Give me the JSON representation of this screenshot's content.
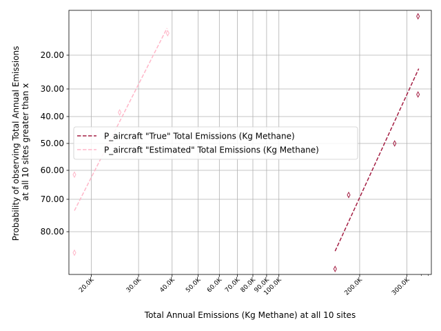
{
  "chart_data": {
    "type": "scatter",
    "xlabel": "Total Annual Emissions (Kg Methane) at all 10 sites",
    "ylabel_lines": [
      "Probability of observing Total Annual Emissions",
      "at all 10 sites greater than x"
    ],
    "x_scale": "log",
    "xlim": [
      16500,
      370000
    ],
    "ylim": [
      0.0,
      1.0
    ],
    "y_inverted_probit_axis": true,
    "x_ticks": [
      {
        "value": 20000,
        "label": "20.0K"
      },
      {
        "value": 30000,
        "label": "30.0K"
      },
      {
        "value": 40000,
        "label": "40.0K"
      },
      {
        "value": 50000,
        "label": "50.0K"
      },
      {
        "value": 60000,
        "label": "60.0K"
      },
      {
        "value": 70000,
        "label": "70.0K"
      },
      {
        "value": 80000,
        "label": "80.0K"
      },
      {
        "value": 90000,
        "label": "90.0K"
      },
      {
        "value": 100000,
        "label": "100.0K"
      },
      {
        "value": 200000,
        "label": "200.0K"
      },
      {
        "value": 300000,
        "label": "300.0K"
      }
    ],
    "y_ticks": [
      {
        "value": 20,
        "label": "20.00"
      },
      {
        "value": 30,
        "label": "30.00"
      },
      {
        "value": 40,
        "label": "40.00"
      },
      {
        "value": 50,
        "label": "50.00"
      },
      {
        "value": 60,
        "label": "60.00"
      },
      {
        "value": 70,
        "label": "70.00"
      },
      {
        "value": 80,
        "label": "80.00"
      }
    ],
    "grid": true,
    "legend_position": "center-left",
    "series": [
      {
        "name": "P_aircraft \"True\" Total Emissions (Kg Methane)",
        "color": "#a31d42",
        "points": [
          {
            "x": 330000,
            "y": 8.5
          },
          {
            "x": 330000,
            "y": 32
          },
          {
            "x": 270000,
            "y": 50
          },
          {
            "x": 182000,
            "y": 68.5
          },
          {
            "x": 162000,
            "y": 91.5
          }
        ],
        "fit": {
          "x": [
            162000,
            332000
          ],
          "y": [
            86,
            24
          ]
        }
      },
      {
        "name": "P_aircraft \"Estimated\" Total Emissions (Kg Methane)",
        "color": "#ffb6c8",
        "points": [
          {
            "x": 38500,
            "y": 13.5
          },
          {
            "x": 25500,
            "y": 38.5
          },
          {
            "x": 17300,
            "y": 61.5
          },
          {
            "x": 17300,
            "y": 86.5
          }
        ],
        "fit": {
          "x": [
            17300,
            38300
          ],
          "y": [
            73.5,
            12
          ]
        }
      }
    ]
  }
}
